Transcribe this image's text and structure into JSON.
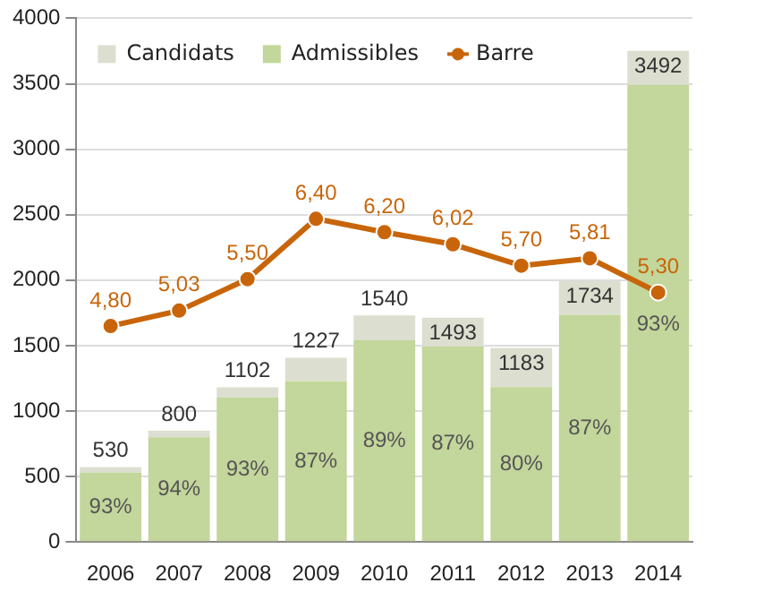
{
  "chart_data": {
    "type": "bar",
    "stacked": true,
    "categories": [
      "2006",
      "2007",
      "2008",
      "2009",
      "2010",
      "2011",
      "2012",
      "2013",
      "2014"
    ],
    "series": [
      {
        "name": "Admissibles",
        "color": "#c3d69b",
        "values": [
          530,
          800,
          1102,
          1227,
          1540,
          1493,
          1183,
          1734,
          3492
        ],
        "value_labels": [
          "530",
          "800",
          "1102",
          "1227",
          "1540",
          "1493",
          "1183",
          "1734",
          "3492"
        ]
      },
      {
        "name": "Candidats",
        "color": "#dcdfcf",
        "values": [
          40,
          50,
          80,
          180,
          190,
          220,
          300,
          260,
          260
        ]
      },
      {
        "name": "Barre",
        "type": "line",
        "axis": "y2",
        "color": "#c8650a",
        "values": [
          4.8,
          5.03,
          5.5,
          6.4,
          6.2,
          6.02,
          5.7,
          5.81,
          5.3
        ],
        "value_labels": [
          "4,80",
          "5,03",
          "5,50",
          "6,40",
          "6,20",
          "6,02",
          "5,70",
          "5,81",
          "5,30"
        ]
      }
    ],
    "annotations": [
      "93%",
      "94%",
      "93%",
      "87%",
      "89%",
      "87%",
      "80%",
      "87%",
      "93%"
    ],
    "ylim": [
      0,
      4000
    ],
    "yticks": [
      0,
      500,
      1000,
      1500,
      2000,
      2500,
      3000,
      3500,
      4000
    ],
    "y2lim": [
      1.58,
      9.39
    ],
    "grid": "y",
    "legend": "top left",
    "marker": "circle"
  }
}
